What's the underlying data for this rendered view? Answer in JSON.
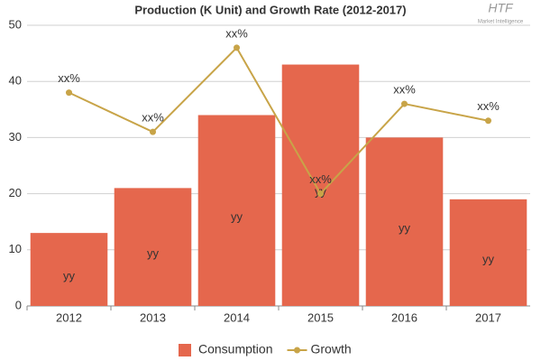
{
  "chart_data": {
    "type": "bar",
    "title": "Production (K Unit) and Growth Rate (2012-2017)",
    "watermark": [
      "HTF",
      "Market Intelligence"
    ],
    "categories": [
      "2012",
      "2013",
      "2014",
      "2015",
      "2016",
      "2017"
    ],
    "series": [
      {
        "name": "Consumption",
        "type": "bar",
        "color": "#e5674d",
        "values": [
          13,
          21,
          34,
          43,
          30,
          19
        ],
        "value_labels": [
          "yy",
          "yy",
          "yy",
          "yy",
          "yy",
          "yy"
        ]
      },
      {
        "name": "Growth",
        "type": "line",
        "color": "#c8a448",
        "values": [
          38,
          31,
          46,
          20,
          36,
          33
        ],
        "value_labels": [
          "xx%",
          "xx%",
          "xx%",
          "xx%",
          "xx%",
          "xx%"
        ]
      }
    ],
    "ylim": [
      0,
      50
    ],
    "yticks": [
      0,
      10,
      20,
      30,
      40,
      50
    ],
    "grid": true,
    "legend": "bottom"
  }
}
